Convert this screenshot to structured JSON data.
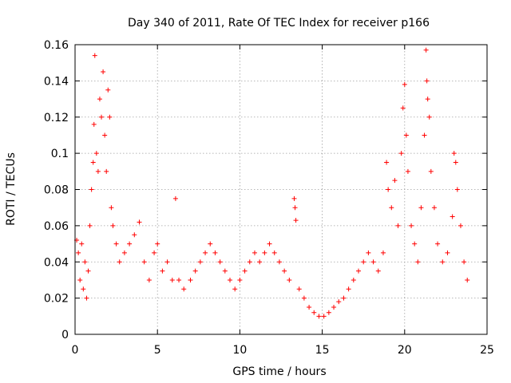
{
  "chart_data": {
    "type": "scatter",
    "title": "Day 340 of 2011, Rate Of TEC Index for receiver p166",
    "xlabel": "GPS time / hours",
    "ylabel": "ROTI / TECUs",
    "xlim": [
      0,
      25
    ],
    "ylim": [
      0,
      0.16
    ],
    "xticks": [
      0,
      5,
      10,
      15,
      20,
      25
    ],
    "xtick_labels": [
      "0",
      "5",
      "10",
      "15",
      "20",
      "25"
    ],
    "yticks": [
      0,
      0.02,
      0.04,
      0.06,
      0.08,
      0.1,
      0.12,
      0.14,
      0.16
    ],
    "ytick_labels": [
      "0",
      "0.02",
      "0.04",
      "0.06",
      "0.08",
      "0.1",
      "0.12",
      "0.14",
      "0.16"
    ],
    "grid": true,
    "marker": "+",
    "series": [
      {
        "color": "#ff0000",
        "points": [
          [
            0.1,
            0.052
          ],
          [
            0.2,
            0.045
          ],
          [
            0.3,
            0.03
          ],
          [
            0.4,
            0.05
          ],
          [
            0.5,
            0.025
          ],
          [
            0.6,
            0.04
          ],
          [
            0.7,
            0.02
          ],
          [
            0.8,
            0.035
          ],
          [
            0.9,
            0.06
          ],
          [
            1.0,
            0.08
          ],
          [
            1.1,
            0.095
          ],
          [
            1.15,
            0.116
          ],
          [
            1.2,
            0.154
          ],
          [
            1.3,
            0.1
          ],
          [
            1.4,
            0.09
          ],
          [
            1.5,
            0.13
          ],
          [
            1.6,
            0.12
          ],
          [
            1.7,
            0.145
          ],
          [
            1.8,
            0.11
          ],
          [
            1.9,
            0.09
          ],
          [
            2.0,
            0.135
          ],
          [
            2.1,
            0.12
          ],
          [
            2.2,
            0.07
          ],
          [
            2.3,
            0.06
          ],
          [
            2.5,
            0.05
          ],
          [
            2.7,
            0.04
          ],
          [
            3.0,
            0.045
          ],
          [
            3.3,
            0.05
          ],
          [
            3.6,
            0.055
          ],
          [
            3.9,
            0.062
          ],
          [
            4.2,
            0.04
          ],
          [
            4.5,
            0.03
          ],
          [
            4.8,
            0.045
          ],
          [
            5.0,
            0.05
          ],
          [
            5.3,
            0.035
          ],
          [
            5.6,
            0.04
          ],
          [
            5.9,
            0.03
          ],
          [
            6.1,
            0.075
          ],
          [
            6.3,
            0.03
          ],
          [
            6.6,
            0.025
          ],
          [
            7.0,
            0.03
          ],
          [
            7.3,
            0.035
          ],
          [
            7.6,
            0.04
          ],
          [
            7.9,
            0.045
          ],
          [
            8.2,
            0.05
          ],
          [
            8.5,
            0.045
          ],
          [
            8.8,
            0.04
          ],
          [
            9.1,
            0.035
          ],
          [
            9.4,
            0.03
          ],
          [
            9.7,
            0.025
          ],
          [
            10.0,
            0.03
          ],
          [
            10.3,
            0.035
          ],
          [
            10.6,
            0.04
          ],
          [
            10.9,
            0.045
          ],
          [
            11.2,
            0.04
          ],
          [
            11.5,
            0.045
          ],
          [
            11.8,
            0.05
          ],
          [
            12.1,
            0.045
          ],
          [
            12.4,
            0.04
          ],
          [
            12.7,
            0.035
          ],
          [
            13.0,
            0.03
          ],
          [
            13.3,
            0.075
          ],
          [
            13.35,
            0.07
          ],
          [
            13.4,
            0.063
          ],
          [
            13.6,
            0.025
          ],
          [
            13.9,
            0.02
          ],
          [
            14.2,
            0.015
          ],
          [
            14.5,
            0.012
          ],
          [
            14.8,
            0.01
          ],
          [
            15.1,
            0.01
          ],
          [
            15.4,
            0.012
          ],
          [
            15.7,
            0.015
          ],
          [
            16.0,
            0.018
          ],
          [
            16.3,
            0.02
          ],
          [
            16.6,
            0.025
          ],
          [
            16.9,
            0.03
          ],
          [
            17.2,
            0.035
          ],
          [
            17.5,
            0.04
          ],
          [
            17.8,
            0.045
          ],
          [
            18.1,
            0.04
          ],
          [
            18.4,
            0.035
          ],
          [
            18.7,
            0.045
          ],
          [
            18.9,
            0.095
          ],
          [
            19.0,
            0.08
          ],
          [
            19.2,
            0.07
          ],
          [
            19.4,
            0.085
          ],
          [
            19.6,
            0.06
          ],
          [
            19.8,
            0.1
          ],
          [
            19.9,
            0.125
          ],
          [
            20.0,
            0.138
          ],
          [
            20.1,
            0.11
          ],
          [
            20.2,
            0.09
          ],
          [
            20.4,
            0.06
          ],
          [
            20.6,
            0.05
          ],
          [
            20.8,
            0.04
          ],
          [
            21.0,
            0.07
          ],
          [
            21.2,
            0.11
          ],
          [
            21.3,
            0.157
          ],
          [
            21.35,
            0.14
          ],
          [
            21.4,
            0.13
          ],
          [
            21.5,
            0.12
          ],
          [
            21.6,
            0.09
          ],
          [
            21.8,
            0.07
          ],
          [
            22.0,
            0.05
          ],
          [
            22.3,
            0.04
          ],
          [
            22.6,
            0.045
          ],
          [
            22.9,
            0.065
          ],
          [
            23.0,
            0.1
          ],
          [
            23.1,
            0.095
          ],
          [
            23.2,
            0.08
          ],
          [
            23.4,
            0.06
          ],
          [
            23.6,
            0.04
          ],
          [
            23.8,
            0.03
          ]
        ]
      }
    ]
  }
}
